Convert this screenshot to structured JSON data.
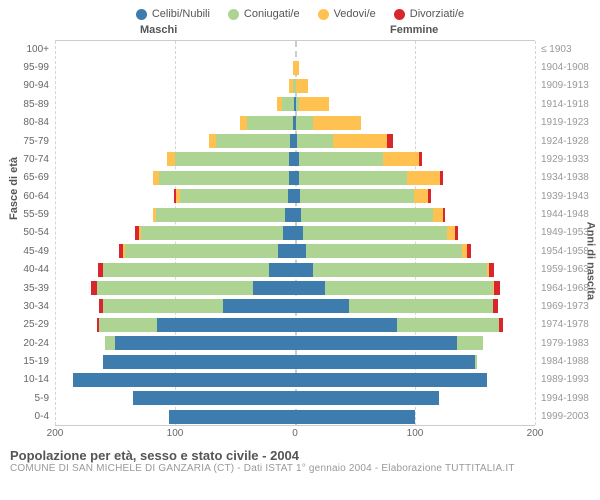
{
  "legend": [
    {
      "label": "Celibi/Nubili",
      "color": "#3d7cad"
    },
    {
      "label": "Coniugati/e",
      "color": "#aed494"
    },
    {
      "label": "Vedovi/e",
      "color": "#ffc251"
    },
    {
      "label": "Divorziati/e",
      "color": "#d9262c"
    }
  ],
  "headers": {
    "male": "Maschi",
    "female": "Femmine"
  },
  "axis_left": "Fasce di età",
  "axis_right": "Anni di nascita",
  "title": "Popolazione per età, sesso e stato civile - 2004",
  "subtitle": "COMUNE DI SAN MICHELE DI GANZARIA (CT) - Dati ISTAT 1° gennaio 2004 - Elaborazione TUTTITALIA.IT",
  "colors": {
    "single": "#3d7cad",
    "married": "#aed494",
    "widowed": "#ffc251",
    "divorced": "#d9262c",
    "grid": "#d5d5d5",
    "background": "#ffffff"
  },
  "x_axis": {
    "max": 200,
    "ticks": [
      200,
      100,
      0,
      100,
      200
    ],
    "tick_labels": [
      "200",
      "100",
      "0",
      "100",
      "200"
    ]
  },
  "rows": [
    {
      "age": "100+",
      "birth": "≤ 1903",
      "m": [
        0,
        0,
        0,
        0
      ],
      "f": [
        0,
        0,
        0,
        0
      ]
    },
    {
      "age": "95-99",
      "birth": "1904-1908",
      "m": [
        0,
        0,
        2,
        0
      ],
      "f": [
        0,
        0,
        3,
        0
      ]
    },
    {
      "age": "90-94",
      "birth": "1909-1913",
      "m": [
        0,
        2,
        3,
        0
      ],
      "f": [
        0,
        1,
        10,
        0
      ]
    },
    {
      "age": "85-89",
      "birth": "1914-1918",
      "m": [
        1,
        10,
        4,
        0
      ],
      "f": [
        1,
        2,
        25,
        0
      ]
    },
    {
      "age": "80-84",
      "birth": "1919-1923",
      "m": [
        2,
        38,
        6,
        0
      ],
      "f": [
        1,
        14,
        40,
        0
      ]
    },
    {
      "age": "75-79",
      "birth": "1924-1928",
      "m": [
        4,
        62,
        6,
        0
      ],
      "f": [
        2,
        30,
        45,
        5
      ]
    },
    {
      "age": "70-74",
      "birth": "1929-1933",
      "m": [
        5,
        95,
        7,
        0
      ],
      "f": [
        3,
        70,
        30,
        3
      ]
    },
    {
      "age": "65-69",
      "birth": "1934-1938",
      "m": [
        5,
        108,
        5,
        0
      ],
      "f": [
        3,
        90,
        28,
        2
      ]
    },
    {
      "age": "60-64",
      "birth": "1939-1943",
      "m": [
        6,
        90,
        3,
        2
      ],
      "f": [
        4,
        95,
        12,
        2
      ]
    },
    {
      "age": "55-59",
      "birth": "1944-1948",
      "m": [
        8,
        108,
        2,
        0
      ],
      "f": [
        5,
        110,
        8,
        2
      ]
    },
    {
      "age": "50-54",
      "birth": "1949-1953",
      "m": [
        10,
        118,
        2,
        3
      ],
      "f": [
        7,
        120,
        6,
        3
      ]
    },
    {
      "age": "45-49",
      "birth": "1954-1958",
      "m": [
        14,
        128,
        1,
        4
      ],
      "f": [
        9,
        130,
        4,
        4
      ]
    },
    {
      "age": "40-44",
      "birth": "1959-1963",
      "m": [
        22,
        138,
        0,
        4
      ],
      "f": [
        15,
        145,
        2,
        4
      ]
    },
    {
      "age": "35-39",
      "birth": "1964-1968",
      "m": [
        35,
        130,
        0,
        5
      ],
      "f": [
        25,
        140,
        1,
        5
      ]
    },
    {
      "age": "30-34",
      "birth": "1969-1973",
      "m": [
        60,
        100,
        0,
        3
      ],
      "f": [
        45,
        120,
        0,
        4
      ]
    },
    {
      "age": "25-29",
      "birth": "1974-1978",
      "m": [
        115,
        48,
        0,
        2
      ],
      "f": [
        85,
        85,
        0,
        3
      ]
    },
    {
      "age": "20-24",
      "birth": "1979-1983",
      "m": [
        150,
        8,
        0,
        0
      ],
      "f": [
        135,
        22,
        0,
        0
      ]
    },
    {
      "age": "15-19",
      "birth": "1984-1988",
      "m": [
        160,
        0,
        0,
        0
      ],
      "f": [
        150,
        2,
        0,
        0
      ]
    },
    {
      "age": "10-14",
      "birth": "1989-1993",
      "m": [
        185,
        0,
        0,
        0
      ],
      "f": [
        160,
        0,
        0,
        0
      ]
    },
    {
      "age": "5-9",
      "birth": "1994-1998",
      "m": [
        135,
        0,
        0,
        0
      ],
      "f": [
        120,
        0,
        0,
        0
      ]
    },
    {
      "age": "0-4",
      "birth": "1999-2003",
      "m": [
        105,
        0,
        0,
        0
      ],
      "f": [
        100,
        0,
        0,
        0
      ]
    }
  ]
}
